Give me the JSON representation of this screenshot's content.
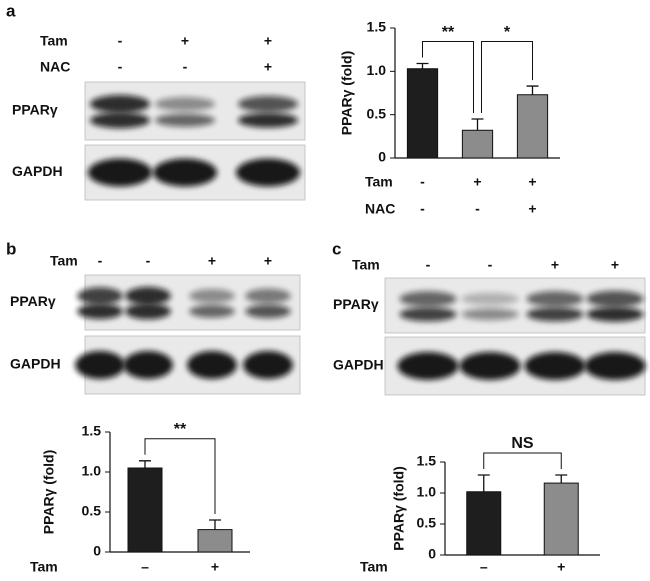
{
  "panel_labels": [
    "a",
    "b",
    "c"
  ],
  "blots": [
    {
      "rows": [
        {
          "name": "Tam",
          "values": [
            "-",
            "+",
            "+"
          ]
        },
        {
          "name": "NAC",
          "values": [
            "-",
            "-",
            "+"
          ]
        }
      ],
      "bands": [
        "PPARγ",
        "GAPDH"
      ]
    },
    {
      "rows": [
        {
          "name": "Tam",
          "values": [
            "-",
            "-",
            "+",
            "+"
          ]
        }
      ],
      "bands": [
        "PPARγ",
        "GAPDH"
      ]
    },
    {
      "rows": [
        {
          "name": "Tam",
          "values": [
            "-",
            "-",
            "+",
            "+"
          ]
        }
      ],
      "bands": [
        "PPARγ",
        "GAPDH"
      ]
    }
  ],
  "chart_data": [
    {
      "type": "bar",
      "ylabel": "PPARγ (fold)",
      "rows": [
        {
          "name": "Tam",
          "labels": [
            "-",
            "+",
            "+"
          ]
        },
        {
          "name": "NAC",
          "labels": [
            "-",
            "-",
            "+"
          ]
        }
      ],
      "values": [
        1.03,
        0.32,
        0.73
      ],
      "errors": [
        0.06,
        0.13,
        0.1
      ],
      "colors": [
        "#1e1e1e",
        "#8c8c8c",
        "#8c8c8c"
      ],
      "ylim": [
        0,
        1.5
      ],
      "yticks": [
        0,
        0.5,
        {
          "value": 1,
          "label": "1.0"
        },
        1.5
      ],
      "annotations": [
        "**",
        "*"
      ]
    },
    {
      "type": "bar",
      "ylabel": "PPARγ (fold)",
      "rows": [
        {
          "name": "Tam",
          "labels": [
            "–",
            "+"
          ]
        }
      ],
      "values": [
        1.05,
        0.28
      ],
      "errors": [
        0.09,
        0.12
      ],
      "colors": [
        "#1e1e1e",
        "#8c8c8c"
      ],
      "ylim": [
        0,
        1.5
      ],
      "yticks": [
        0,
        0.5,
        {
          "value": 1,
          "label": "1.0"
        },
        1.5
      ],
      "annotations": [
        "**"
      ]
    },
    {
      "type": "bar",
      "ylabel": "PPARγ (fold)",
      "rows": [
        {
          "name": "Tam",
          "labels": [
            "–",
            "+"
          ]
        }
      ],
      "values": [
        1.02,
        1.16
      ],
      "errors": [
        0.27,
        0.13
      ],
      "colors": [
        "#1e1e1e",
        "#8c8c8c"
      ],
      "ylim": [
        0,
        1.5
      ],
      "yticks": [
        0,
        0.5,
        {
          "value": 1,
          "label": "1.0"
        },
        1.5
      ],
      "annotations": [
        "NS"
      ]
    }
  ]
}
